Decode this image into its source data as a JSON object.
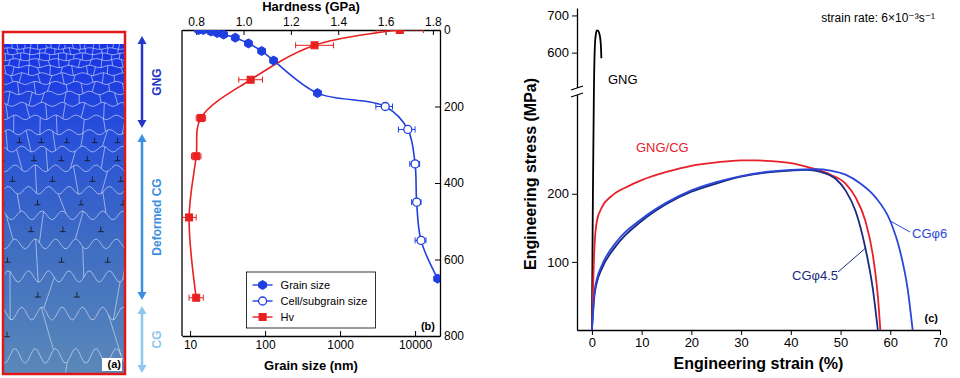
{
  "diagram": {
    "labels": [
      "GNG",
      "Deformed CG",
      "CG"
    ],
    "panel_label": "(a)"
  },
  "chart_data": [
    {
      "type": "scatter",
      "xlabel": "Grain size (nm)",
      "x2label": "Hardness (GPa)",
      "log": "x",
      "xlim": [
        7.8,
        21500
      ],
      "xticks": [
        10,
        100,
        1000,
        10000
      ],
      "x2lim": [
        0.74,
        1.83
      ],
      "x2ticks": [
        0.8,
        {
          "value": 1,
          "label": "1.0"
        },
        1.2,
        1.4,
        1.6,
        1.8
      ],
      "ylim": [
        800,
        0
      ],
      "yticks": [
        0,
        200,
        400,
        600,
        800
      ],
      "legend": "lower center",
      "series": [
        {
          "name": "Grain size",
          "color": "#1f3fe0",
          "marker": "hexagon",
          "line_style": "solid",
          "x": [
            13,
            15,
            19,
            23,
            28,
            40,
            60,
            90,
            130,
            500,
            20000
          ],
          "values": [
            0,
            0,
            4,
            8,
            12,
            20,
            35,
            55,
            80,
            165,
            650
          ]
        },
        {
          "name": "Cell/subgrain size",
          "color": "#1f3fe0",
          "marker": "circle-open",
          "line_style": "solid",
          "x": [
            4000,
            8000,
            10000,
            10500,
            12000
          ],
          "values": [
            200,
            260,
            350,
            450,
            550
          ],
          "x_error": [
            1000,
            2000,
            1500,
            1500,
            2000
          ]
        },
        {
          "name": "Hv",
          "color": "#e82020",
          "marker": "square",
          "line_style": "solid",
          "axis": "x2",
          "x": [
            1.66,
            1.3,
            1.03,
            0.82,
            0.8,
            0.77,
            0.8
          ],
          "values": [
            0,
            40,
            130,
            230,
            330,
            490,
            700
          ],
          "x_error": [
            0.1,
            0.08,
            0.05,
            0.02,
            0.02,
            0.03,
            0.03
          ]
        }
      ],
      "annotations": [
        "(b)"
      ]
    },
    {
      "type": "line",
      "xlabel": "Engineering strain (%)",
      "ylabel": "Engineering stress (MPa)",
      "xlim": [
        -3,
        70
      ],
      "xticks": [
        0,
        10,
        20,
        30,
        40,
        50,
        60,
        70
      ],
      "ylim": [
        0,
        720
      ],
      "ybreak": [
        345,
        505
      ],
      "yticks": [
        100,
        200,
        600,
        700
      ],
      "series": [
        {
          "name": "GNG",
          "color": "#000000",
          "line_style": "solid",
          "x": [
            0,
            0.2,
            0.4,
            0.6,
            0.8,
            1.0,
            1.3,
            1.6,
            1.8,
            1.9
          ],
          "values": [
            0,
            200,
            450,
            620,
            650,
            660,
            658,
            645,
            620,
            585
          ]
        },
        {
          "name": "GNG/CG",
          "color": "#e8202a",
          "line_style": "solid",
          "x": [
            0,
            0.5,
            1,
            2,
            4,
            7,
            10,
            15,
            20,
            25,
            30,
            33,
            36,
            40,
            44,
            48,
            51,
            53,
            55,
            56.5,
            57.5,
            58
          ],
          "values": [
            0,
            120,
            160,
            180,
            197,
            210,
            220,
            232,
            241,
            246,
            249,
            249,
            248,
            245,
            238,
            228,
            215,
            195,
            160,
            110,
            50,
            0
          ]
        },
        {
          "name": "CGφ4.5",
          "color": "#1a2a80",
          "line_style": "solid",
          "x": [
            0,
            0.5,
            1,
            2,
            5,
            10,
            15,
            20,
            25,
            30,
            35,
            40,
            43,
            46,
            49,
            51,
            53,
            55,
            56.5,
            57.5
          ],
          "values": [
            0,
            50,
            70,
            90,
            125,
            160,
            185,
            203,
            215,
            225,
            231,
            234,
            235,
            232,
            222,
            205,
            175,
            120,
            60,
            0
          ]
        },
        {
          "name": "CGφ6",
          "color": "#2a46d8",
          "line_style": "solid",
          "x": [
            0,
            0.5,
            1,
            2,
            5,
            10,
            15,
            20,
            25,
            30,
            35,
            40,
            45,
            48,
            51,
            54,
            57,
            60,
            62,
            63.5,
            64.5
          ],
          "values": [
            0,
            55,
            75,
            95,
            130,
            163,
            187,
            205,
            217,
            226,
            232,
            235,
            236,
            234,
            228,
            215,
            195,
            160,
            115,
            60,
            0
          ]
        }
      ],
      "annotations": [
        "strain rate: 6×10⁻³s⁻¹",
        "(c)"
      ]
    }
  ]
}
